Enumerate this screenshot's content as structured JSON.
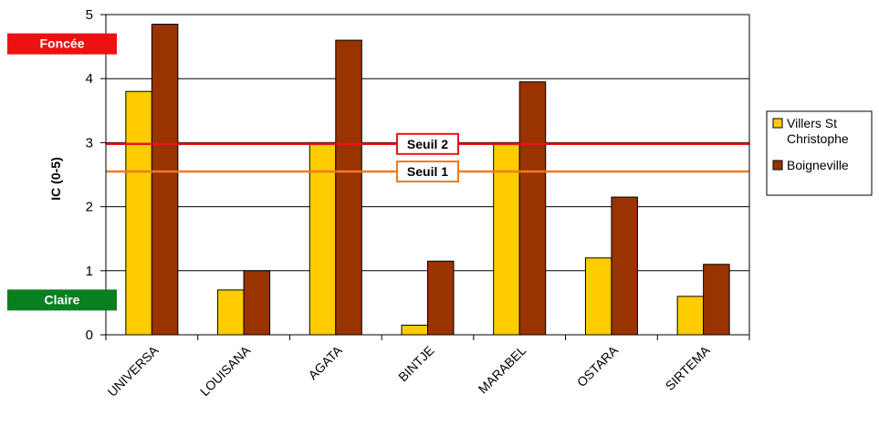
{
  "chart_data": {
    "type": "bar",
    "ylabel": "IC (0-5)",
    "ylim": [
      0,
      5
    ],
    "yticks": [
      "0",
      "1",
      "2",
      "3",
      "4",
      "5"
    ],
    "grid": true,
    "categories": [
      "UNIVERSA",
      "LOUISANA",
      "AGATA",
      "BINTJE",
      "MARABEL",
      "OSTARA",
      "SIRTEMA"
    ],
    "series": [
      {
        "name": "Villers St Christophe",
        "legend_lines": [
          "Villers St",
          "Christophe"
        ],
        "color": "#ffcc00",
        "values": [
          3.8,
          0.7,
          3.0,
          0.15,
          3.0,
          1.2,
          0.6
        ]
      },
      {
        "name": "Boigneville",
        "legend_lines": [
          "Boigneville"
        ],
        "color": "#993300",
        "values": [
          4.85,
          1.0,
          4.6,
          1.15,
          3.95,
          2.15,
          1.1
        ]
      }
    ],
    "thresholds": [
      {
        "label": "Seuil 2",
        "value": 2.98,
        "color": "#e8141c"
      },
      {
        "label": "Seuil 1",
        "value": 2.55,
        "color": "#f07b20"
      }
    ],
    "scale_tags": [
      {
        "label": "Foncée",
        "value": 4.55,
        "color": "#ee1111"
      },
      {
        "label": "Claire",
        "value": 0.55,
        "color": "#0a7f20"
      }
    ],
    "legend_position": "right"
  }
}
